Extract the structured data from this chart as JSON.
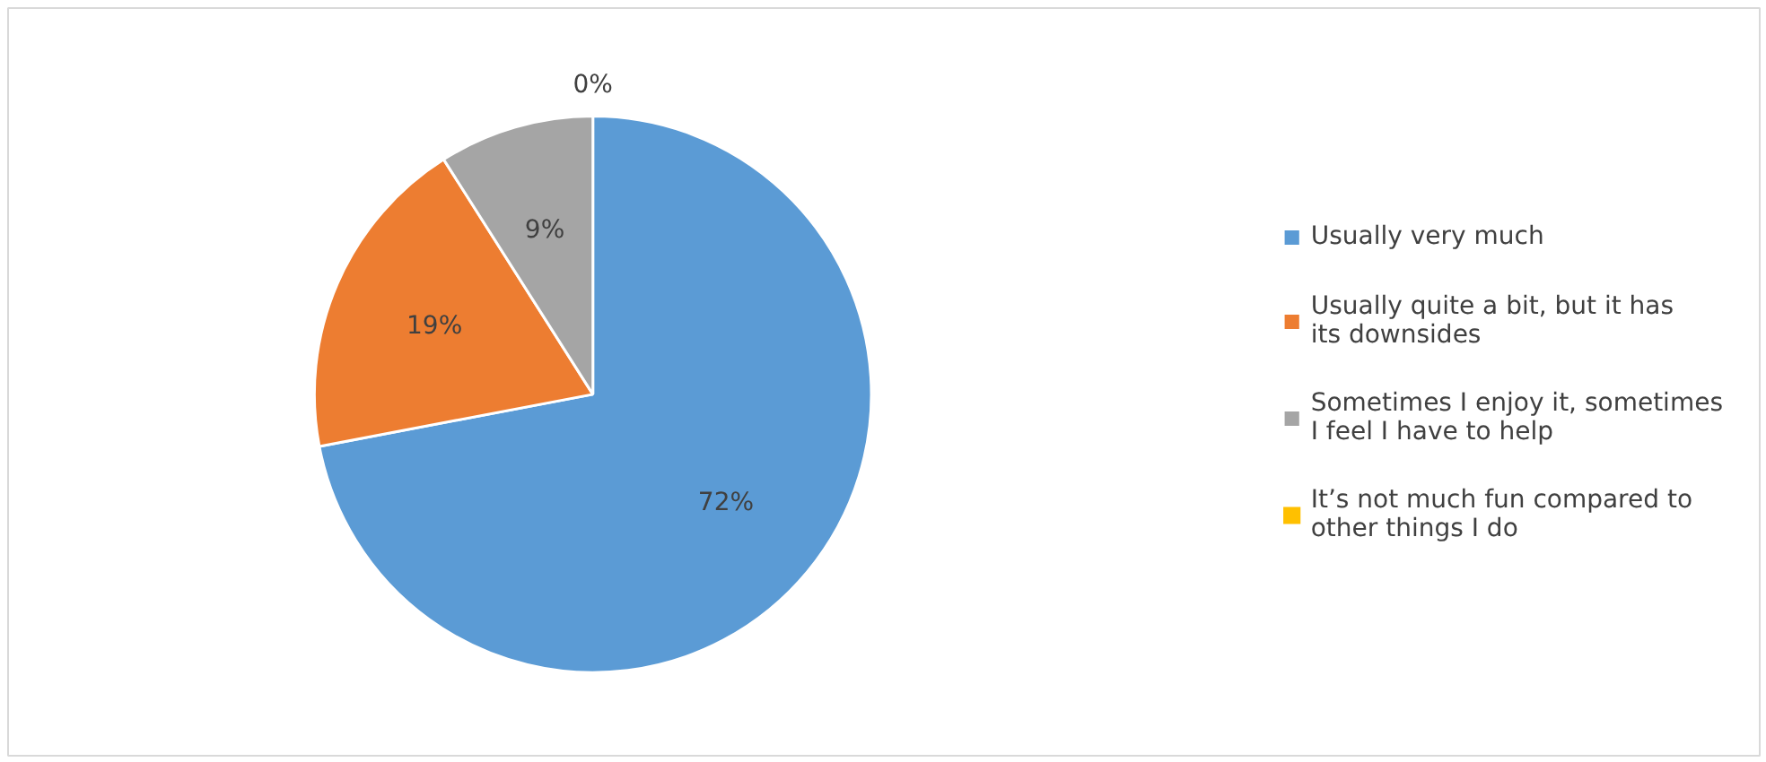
{
  "chart_data": {
    "type": "pie",
    "categories": [
      "Usually very much",
      "Usually quite a bit, but it has its downsides",
      "Sometimes I enjoy it, sometimes I feel I have to help",
      "It’s not much fun compared to other things I do"
    ],
    "values": [
      72,
      19,
      9,
      0
    ],
    "colors": [
      "#5b9bd5",
      "#ed7d31",
      "#a5a5a5",
      "#ffc000"
    ],
    "value_labels": [
      "72%",
      "19%",
      "9%",
      "0%"
    ],
    "legend": "right"
  }
}
